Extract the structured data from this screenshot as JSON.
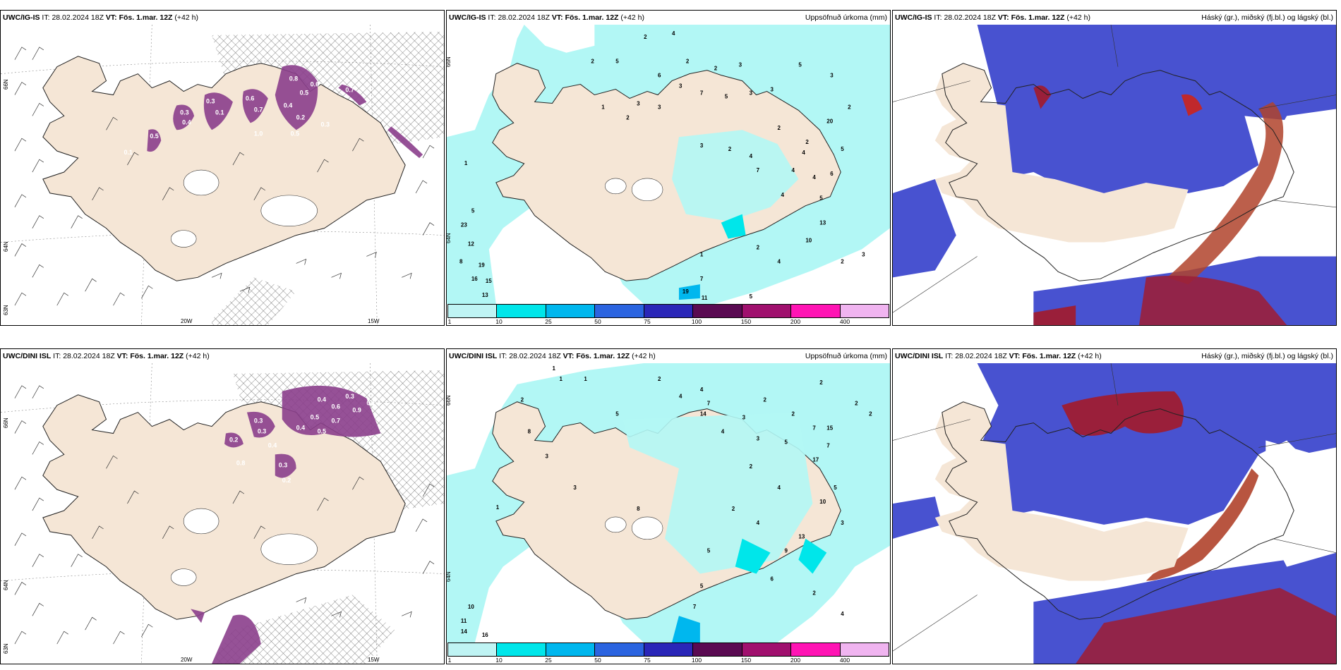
{
  "panels": [
    {
      "model": "UWC/IG-IS",
      "it_label": "IT:",
      "it_value": "28.02.2024 18Z",
      "vt_label": "VT:",
      "vt_value": "Fös. 1.mar. 12Z",
      "lead": "(+42 h)",
      "right_title": "",
      "type": "wind",
      "lat_labels": [
        "66N",
        "64N",
        "63N"
      ],
      "lon_labels": [
        "20W",
        "15W"
      ],
      "values": [
        "0.3",
        "0.1",
        "0.6",
        "0.7",
        "0.8",
        "0.5",
        "0.4",
        "0.2",
        "0.3",
        "0.4",
        "0.5",
        "1.0",
        "0.5",
        "0.6",
        "0.7",
        "0.3",
        "0.1"
      ]
    },
    {
      "model": "UWC/IG-IS",
      "it_label": "IT:",
      "it_value": "28.02.2024 18Z",
      "vt_label": "VT:",
      "vt_value": "Fös. 1.mar. 12Z",
      "lead": "(+42 h)",
      "right_title": "Uppsöfnuð úrkoma (mm)",
      "type": "precip",
      "lat_labels": [
        "66N",
        "64N"
      ],
      "numbers": [
        "2",
        "4",
        "2",
        "5",
        "1",
        "3",
        "2",
        "3",
        "2",
        "2",
        "3",
        "7",
        "5",
        "3",
        "3",
        "5",
        "3",
        "2",
        "20",
        "2",
        "5",
        "2",
        "4",
        "4",
        "6",
        "5",
        "4",
        "2",
        "3",
        "13",
        "10",
        "4",
        "2",
        "3",
        "4",
        "2",
        "1",
        "19",
        "7",
        "11",
        "5",
        "23",
        "12",
        "8",
        "19",
        "16",
        "15",
        "13",
        "5",
        "1",
        "4",
        "7",
        "6",
        "3"
      ]
    },
    {
      "model": "UWC/IG-IS",
      "it_label": "IT:",
      "it_value": "28.02.2024 18Z",
      "vt_label": "VT:",
      "vt_value": "Fös. 1.mar. 12Z",
      "lead": "(+42 h)",
      "right_title": "Háský (gr.), miðský (fj.bl.) og lágský (bl.)",
      "type": "cloud"
    },
    {
      "model": "UWC/DINI ISL",
      "it_label": "IT:",
      "it_value": "28.02.2024 18Z",
      "vt_label": "VT:",
      "vt_value": "Fös. 1.mar. 12Z",
      "lead": "(+42 h)",
      "right_title": "",
      "type": "wind",
      "lat_labels": [
        "66N",
        "64N",
        "63N"
      ],
      "lon_labels": [
        "20W",
        "15W"
      ],
      "values": [
        "0.4",
        "0.3",
        "0.9",
        "0.5",
        "0.7",
        "0.3",
        "0.4",
        "0.3",
        "0.2",
        "0.5",
        "0.6",
        "0.2",
        "0.3",
        "0.1",
        "0.4",
        "0.8"
      ]
    },
    {
      "model": "UWC/DINI ISL",
      "it_label": "IT:",
      "it_value": "28.02.2024 18Z",
      "vt_label": "VT:",
      "vt_value": "Fös. 1.mar. 12Z",
      "lead": "(+42 h)",
      "right_title": "Uppsöfnuð úrkoma (mm)",
      "type": "precip",
      "lat_labels": [
        "66N",
        "64N"
      ],
      "numbers": [
        "1",
        "1",
        "1",
        "2",
        "4",
        "2",
        "8",
        "3",
        "4",
        "7",
        "5",
        "2",
        "3",
        "2",
        "7",
        "14",
        "4",
        "3",
        "5",
        "7",
        "2",
        "17",
        "5",
        "10",
        "4",
        "2",
        "13",
        "15",
        "9",
        "5",
        "6",
        "3",
        "2",
        "4",
        "11",
        "14",
        "16",
        "10",
        "1",
        "3",
        "5",
        "7",
        "2",
        "4",
        "8",
        "2",
        "2"
      ]
    },
    {
      "model": "UWC/DINI ISL",
      "it_label": "IT:",
      "it_value": "28.02.2024 18Z",
      "vt_label": "VT:",
      "vt_value": "Fös. 1.mar. 12Z",
      "lead": "(+42 h)",
      "right_title": "Háský (gr.), miðský (fj.bl.) og lágský (bl.)",
      "type": "cloud"
    }
  ],
  "legend": {
    "ticks": [
      "1",
      "10",
      "25",
      "50",
      "75",
      "100",
      "150",
      "200",
      "400"
    ],
    "colors": [
      "#bff4f4",
      "#00e6ea",
      "#00b7ee",
      "#2b64e0",
      "#2a26b8",
      "#5a0a52",
      "#a0106e",
      "#ff14b4",
      "#f0b4f0"
    ]
  },
  "colors": {
    "land": "#f5e6d6",
    "precip_light": "#b2f7f5",
    "precip_mid": "#00e6ea",
    "cloud_mid": "#4852d0",
    "cloud_high": "#9a1f3a",
    "cloud_low_light": "#6fa8f0",
    "wind_precip": "#8b3f8c"
  }
}
